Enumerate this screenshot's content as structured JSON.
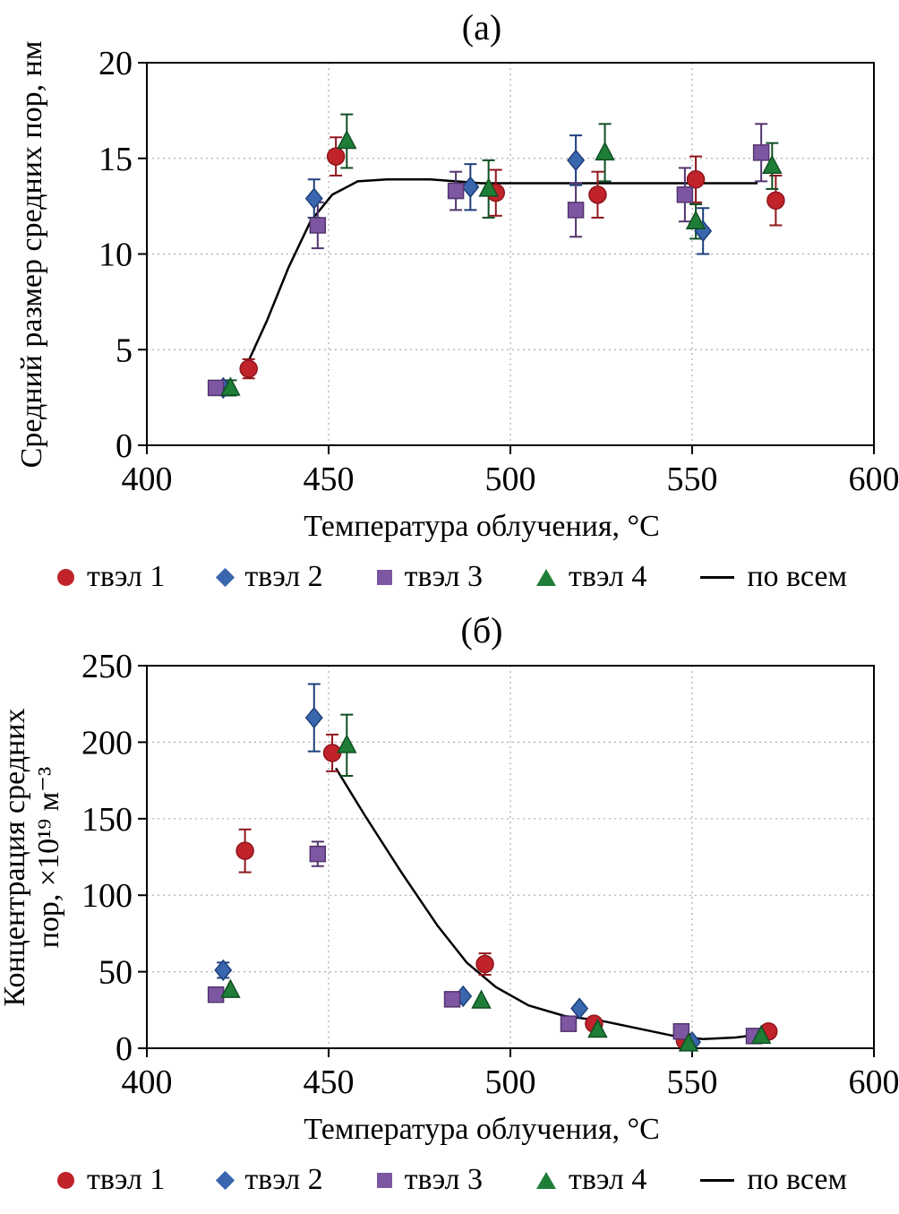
{
  "legend": {
    "items": [
      {
        "label": "твэл 1",
        "marker": "circle",
        "color": "#c0232a"
      },
      {
        "label": "твэл 2",
        "marker": "diamond",
        "color": "#3a66ae"
      },
      {
        "label": "твэл 3",
        "marker": "square",
        "color": "#7e57a3"
      },
      {
        "label": "твэл 4",
        "marker": "triangle",
        "color": "#1e7e38"
      },
      {
        "label": "по всем",
        "marker": "line",
        "color": "#000000"
      }
    ]
  },
  "chart_data": [
    {
      "id": "a",
      "type": "scatter",
      "title": "(а)",
      "xlabel": "Температура облучения, °С",
      "ylabel": "Средний размер средних пор, нм",
      "xlim": [
        400,
        600
      ],
      "ylim": [
        0,
        20
      ],
      "xticks": [
        400,
        450,
        500,
        550,
        600
      ],
      "yticks": [
        0,
        5,
        10,
        15,
        20
      ],
      "grid": true,
      "legend_position": "bottom",
      "series": [
        {
          "name": "твэл 1",
          "marker": "circle",
          "color": "#c0232a",
          "edge": "#8f161c",
          "points": [
            {
              "x": 428,
              "y": 4.0,
              "e": 0.5
            },
            {
              "x": 452,
              "y": 15.1,
              "e": 1.0
            },
            {
              "x": 496,
              "y": 13.2,
              "e": 1.2
            },
            {
              "x": 524,
              "y": 13.1,
              "e": 1.2
            },
            {
              "x": 551,
              "y": 13.9,
              "e": 1.2
            },
            {
              "x": 573,
              "y": 12.8,
              "e": 1.3
            }
          ]
        },
        {
          "name": "твэл 2",
          "marker": "diamond",
          "color": "#3a66ae",
          "edge": "#1d3f7a",
          "points": [
            {
              "x": 421,
              "y": 3.0,
              "e": 0.3
            },
            {
              "x": 446,
              "y": 12.9,
              "e": 1.0
            },
            {
              "x": 489,
              "y": 13.5,
              "e": 1.2
            },
            {
              "x": 518,
              "y": 14.9,
              "e": 1.3
            },
            {
              "x": 553,
              "y": 11.2,
              "e": 1.2
            }
          ]
        },
        {
          "name": "твэл 3",
          "marker": "square",
          "color": "#7e57a3",
          "edge": "#53346f",
          "points": [
            {
              "x": 419,
              "y": 3.0,
              "e": 0.3
            },
            {
              "x": 447,
              "y": 11.5,
              "e": 1.2
            },
            {
              "x": 485,
              "y": 13.3,
              "e": 1.0
            },
            {
              "x": 518,
              "y": 12.3,
              "e": 1.4
            },
            {
              "x": 548,
              "y": 13.1,
              "e": 1.4
            },
            {
              "x": 569,
              "y": 15.3,
              "e": 1.5
            }
          ]
        },
        {
          "name": "твэл 4",
          "marker": "triangle",
          "color": "#1e7e38",
          "edge": "#0f4f22",
          "points": [
            {
              "x": 423,
              "y": 3.0,
              "e": 0.4
            },
            {
              "x": 455,
              "y": 15.9,
              "e": 1.4
            },
            {
              "x": 494,
              "y": 13.4,
              "e": 1.5
            },
            {
              "x": 526,
              "y": 15.3,
              "e": 1.5
            },
            {
              "x": 551,
              "y": 11.7,
              "e": 0.9
            },
            {
              "x": 572,
              "y": 14.6,
              "e": 1.2
            }
          ]
        },
        {
          "name": "по всем",
          "type": "line",
          "color": "#000000",
          "points": [
            {
              "x": 427,
              "y": 4.0
            },
            {
              "x": 433,
              "y": 6.5
            },
            {
              "x": 439,
              "y": 9.3
            },
            {
              "x": 445,
              "y": 11.7
            },
            {
              "x": 451,
              "y": 13.1
            },
            {
              "x": 458,
              "y": 13.8
            },
            {
              "x": 466,
              "y": 13.9
            },
            {
              "x": 478,
              "y": 13.9
            },
            {
              "x": 492,
              "y": 13.7
            },
            {
              "x": 510,
              "y": 13.7
            },
            {
              "x": 530,
              "y": 13.7
            },
            {
              "x": 550,
              "y": 13.7
            },
            {
              "x": 568,
              "y": 13.7
            }
          ]
        }
      ]
    },
    {
      "id": "b",
      "type": "scatter",
      "title": "(б)",
      "xlabel": "Температура облучения, °С",
      "ylabel": "Концентрация средних пор, ×10¹⁹ м⁻³",
      "ylabel_lines": [
        "Концентрация средних",
        "пор, ×10¹⁹ м⁻³"
      ],
      "xlim": [
        400,
        600
      ],
      "ylim": [
        0,
        250
      ],
      "xticks": [
        400,
        450,
        500,
        550,
        600
      ],
      "yticks": [
        0,
        50,
        100,
        150,
        200,
        250
      ],
      "grid": true,
      "legend_position": "bottom",
      "series": [
        {
          "name": "твэл 1",
          "marker": "circle",
          "color": "#c0232a",
          "edge": "#8f161c",
          "points": [
            {
              "x": 427,
              "y": 129,
              "e": 14
            },
            {
              "x": 451,
              "y": 193,
              "e": 12
            },
            {
              "x": 493,
              "y": 55,
              "e": 7
            },
            {
              "x": 523,
              "y": 16
            },
            {
              "x": 548,
              "y": 5
            },
            {
              "x": 571,
              "y": 11
            }
          ]
        },
        {
          "name": "твэл 2",
          "marker": "diamond",
          "color": "#3a66ae",
          "edge": "#1d3f7a",
          "points": [
            {
              "x": 421,
              "y": 51,
              "e": 5
            },
            {
              "x": 446,
              "y": 216,
              "e": 22
            },
            {
              "x": 487,
              "y": 34
            },
            {
              "x": 519,
              "y": 26
            },
            {
              "x": 550,
              "y": 4
            }
          ]
        },
        {
          "name": "твэл 3",
          "marker": "square",
          "color": "#7e57a3",
          "edge": "#53346f",
          "points": [
            {
              "x": 419,
              "y": 35
            },
            {
              "x": 447,
              "y": 127,
              "e": 8
            },
            {
              "x": 484,
              "y": 32
            },
            {
              "x": 516,
              "y": 16
            },
            {
              "x": 547,
              "y": 11
            },
            {
              "x": 567,
              "y": 8
            }
          ]
        },
        {
          "name": "твэл 4",
          "marker": "triangle",
          "color": "#1e7e38",
          "edge": "#0f4f22",
          "points": [
            {
              "x": 423,
              "y": 38
            },
            {
              "x": 455,
              "y": 198,
              "e": 20
            },
            {
              "x": 492,
              "y": 31
            },
            {
              "x": 524,
              "y": 12
            },
            {
              "x": 549,
              "y": 3
            },
            {
              "x": 569,
              "y": 8
            }
          ]
        },
        {
          "name": "по всем",
          "type": "line",
          "color": "#000000",
          "points": [
            {
              "x": 452,
              "y": 183
            },
            {
              "x": 460,
              "y": 152
            },
            {
              "x": 470,
              "y": 115
            },
            {
              "x": 480,
              "y": 80
            },
            {
              "x": 488,
              "y": 56
            },
            {
              "x": 496,
              "y": 40
            },
            {
              "x": 505,
              "y": 28
            },
            {
              "x": 515,
              "y": 21
            },
            {
              "x": 525,
              "y": 18
            },
            {
              "x": 535,
              "y": 13
            },
            {
              "x": 545,
              "y": 8
            },
            {
              "x": 553,
              "y": 6
            },
            {
              "x": 562,
              "y": 7
            },
            {
              "x": 572,
              "y": 10
            }
          ]
        }
      ]
    }
  ]
}
